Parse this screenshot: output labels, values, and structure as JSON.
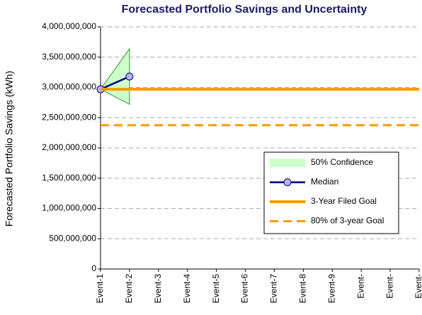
{
  "chart_data": {
    "type": "line",
    "title": "Forecasted Portfolio Savings and Uncertainty",
    "y_label": "Forecasted Portfolio Savings (kWh)",
    "categories": [
      "Event-1",
      "Event-2",
      "Event-3",
      "Event-4",
      "Event-5",
      "Event-6",
      "Event-7",
      "Event-8",
      "Event-9",
      "Event-",
      "Event-",
      "Event-"
    ],
    "ylim": [
      0,
      4000000000
    ],
    "yticks": [
      0,
      {
        "value": 500000000,
        "label": "500,000,000"
      },
      {
        "value": 1000000000,
        "label": "1,000,000,000"
      },
      {
        "value": 1500000000,
        "label": "1,500,000,000"
      },
      {
        "value": 2000000000,
        "label": "2,000,000,000"
      },
      {
        "value": 2500000000,
        "label": "2,500,000,000"
      },
      {
        "value": 3000000000,
        "label": "3,000,000,000"
      },
      {
        "value": 3500000000,
        "label": "3,500,000,000"
      },
      {
        "value": 4000000000,
        "label": "4,000,000,000"
      }
    ],
    "grid": true,
    "legend_position": "right",
    "series": [
      {
        "name": "50% Confidence",
        "style": "band",
        "color": "#ccffcc",
        "edge_color": "#339933",
        "values": [
          2970000000,
          3640000000,
          null,
          null,
          null,
          null,
          null,
          null,
          null,
          null,
          null,
          null
        ],
        "lower": [
          2970000000,
          2720000000,
          null,
          null,
          null,
          null,
          null,
          null,
          null,
          null,
          null,
          null
        ]
      },
      {
        "name": "Median",
        "style": "markers",
        "color": "#000080",
        "marker_color": "#b3b3ff",
        "values": [
          2970000000,
          3180000000,
          null,
          null,
          null,
          null,
          null,
          null,
          null,
          null,
          null,
          null
        ]
      },
      {
        "name": "3-Year Filed Goal",
        "style": "solid",
        "color": "#ff9900",
        "values": [
          2970000000,
          2970000000,
          2970000000,
          2970000000,
          2970000000,
          2970000000,
          2970000000,
          2970000000,
          2970000000,
          2970000000,
          2970000000,
          2970000000
        ]
      },
      {
        "name": "80% of 3-year Goal",
        "style": "dashed",
        "color": "#ff9900",
        "values": [
          2376000000,
          2376000000,
          2376000000,
          2376000000,
          2376000000,
          2376000000,
          2376000000,
          2376000000,
          2376000000,
          2376000000,
          2376000000,
          2376000000
        ]
      }
    ]
  }
}
